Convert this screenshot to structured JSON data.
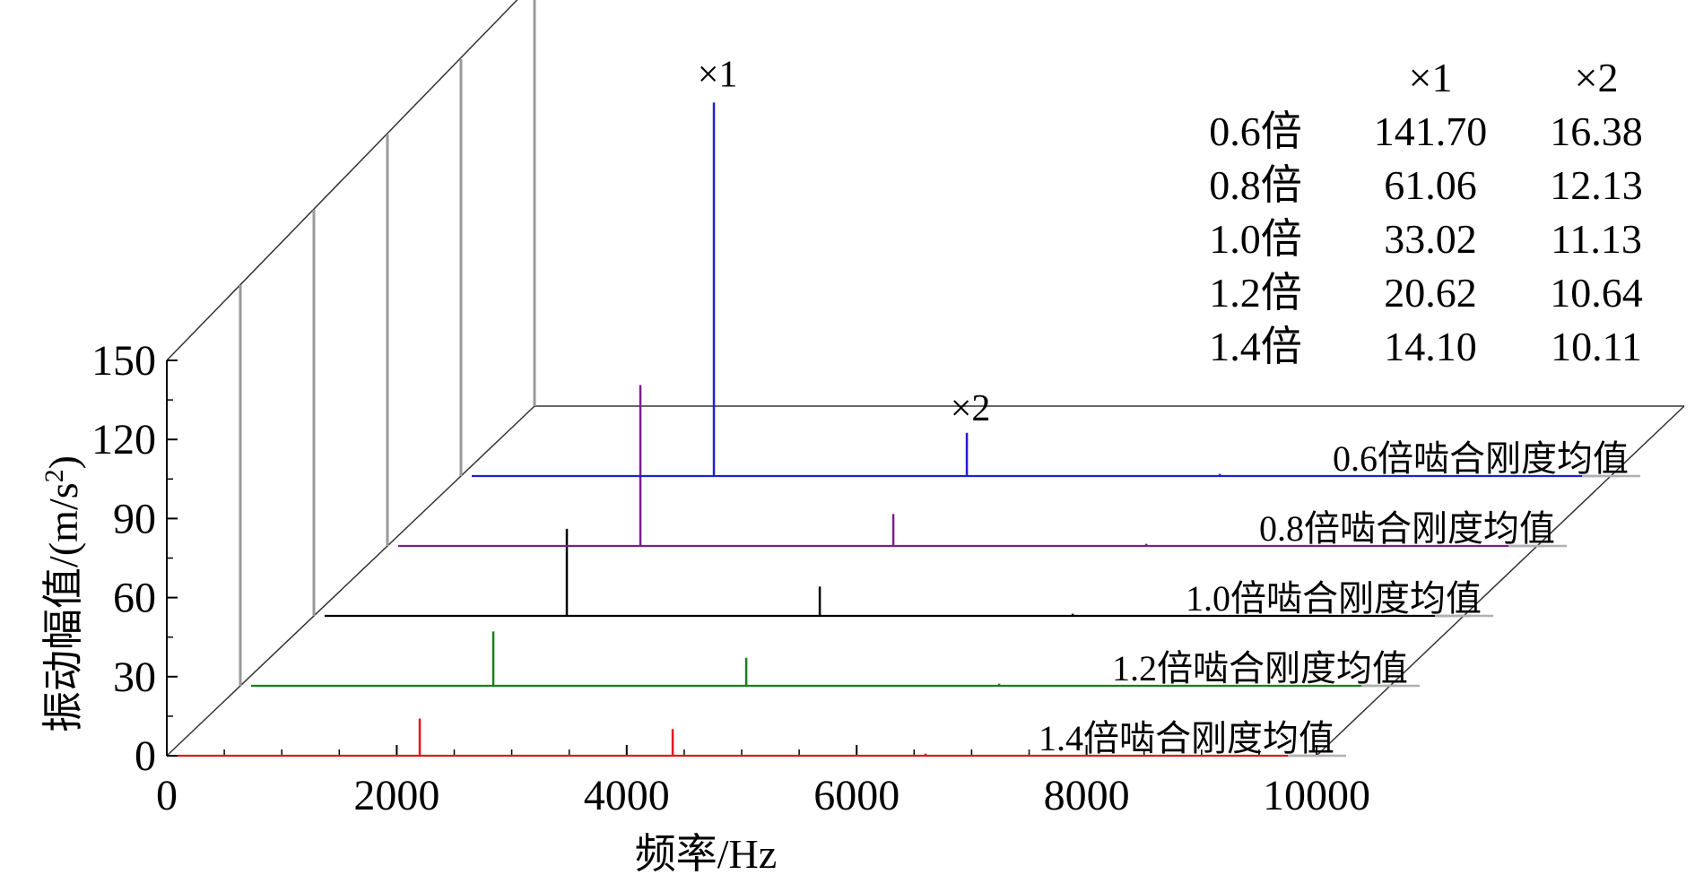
{
  "chart_data": {
    "type": "line",
    "xlabel": "频率/Hz",
    "ylabel": "振动幅值/(m/s²)",
    "ylabel_parts": {
      "main": "振动幅值/(m/s",
      "sup": "2",
      "close": ")"
    },
    "xlim": [
      0,
      10000
    ],
    "ylim": [
      0,
      150
    ],
    "xticks": [
      "0",
      "2000",
      "4000",
      "6000",
      "8000",
      "10000"
    ],
    "yticks": [
      "0",
      "30",
      "60",
      "90",
      "120",
      "150"
    ],
    "series": [
      {
        "name": "1.4倍啮合刚度均值",
        "color": "#e0191e",
        "peaks": [
          {
            "x": 2200,
            "y": 14.1
          },
          {
            "x": 4400,
            "y": 10.11
          },
          {
            "x": 6600,
            "y": 0.8
          }
        ]
      },
      {
        "name": "1.2倍啮合刚度均值",
        "color": "#1a7f1a",
        "peaks": [
          {
            "x": 2200,
            "y": 20.62
          },
          {
            "x": 4400,
            "y": 10.64
          },
          {
            "x": 6600,
            "y": 0.8
          }
        ]
      },
      {
        "name": "1.0倍啮合刚度均值",
        "color": "#000000",
        "peaks": [
          {
            "x": 2200,
            "y": 33.02
          },
          {
            "x": 4400,
            "y": 11.13
          },
          {
            "x": 6600,
            "y": 0.8
          }
        ]
      },
      {
        "name": "0.8倍啮合刚度均值",
        "color": "#7a1f8c",
        "peaks": [
          {
            "x": 2200,
            "y": 61.06
          },
          {
            "x": 4400,
            "y": 12.13
          },
          {
            "x": 6600,
            "y": 0.8
          }
        ]
      },
      {
        "name": "0.6倍啮合刚度均值",
        "color": "#1f1fd6",
        "peaks": [
          {
            "x": 2200,
            "y": 141.7
          },
          {
            "x": 4400,
            "y": 16.38
          },
          {
            "x": 6600,
            "y": 0.8
          }
        ]
      }
    ],
    "annotations": [
      "×1",
      "×2"
    ]
  },
  "table": {
    "headers": [
      "",
      "×1",
      "×2"
    ],
    "rows": [
      [
        "0.6倍",
        "141.70",
        "16.38"
      ],
      [
        "0.8倍",
        "61.06",
        "12.13"
      ],
      [
        "1.0倍",
        "33.02",
        "11.13"
      ],
      [
        "1.2倍",
        "20.62",
        "10.64"
      ],
      [
        "1.4倍",
        "14.10",
        "10.11"
      ]
    ]
  },
  "colors": {
    "grid": "#9a9a9a",
    "axis": "#000000",
    "baseline": "#b0b0b0"
  }
}
